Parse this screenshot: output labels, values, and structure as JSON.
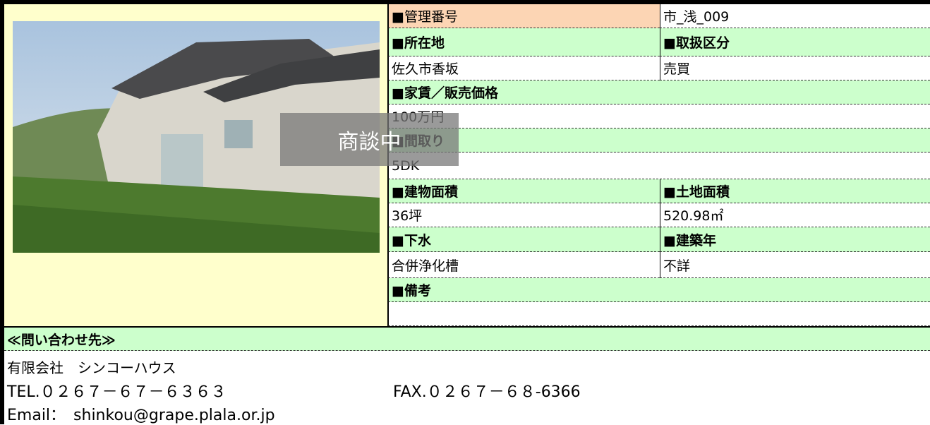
{
  "table": {
    "rows": [
      [
        "■管理番号",
        "市_浅_009"
      ],
      [
        "■所在地",
        "■取扱区分"
      ],
      [
        "佐久市香坂",
        "売買"
      ],
      [
        "■家賃／販売価格"
      ],
      [
        "100万円"
      ],
      [
        "■間取り"
      ],
      [
        "5DK"
      ],
      [
        "■建物面積",
        "■土地面積"
      ],
      [
        "36坪",
        "520.98㎡"
      ],
      [
        "■下水",
        "■建築年"
      ],
      [
        "合併浄化槽",
        "不詳"
      ],
      [
        "■備考"
      ]
    ]
  },
  "overlay": "商談中",
  "contact": {
    "heading": "≪問い合わせ先≫",
    "company": "有限会社　シンコーハウス",
    "tel": "TEL.０２６７－６７－６３６３",
    "fax": "FAX.０２６７－６８-6366",
    "email": "Email：　shinkou@grape.plala.or.jp"
  }
}
